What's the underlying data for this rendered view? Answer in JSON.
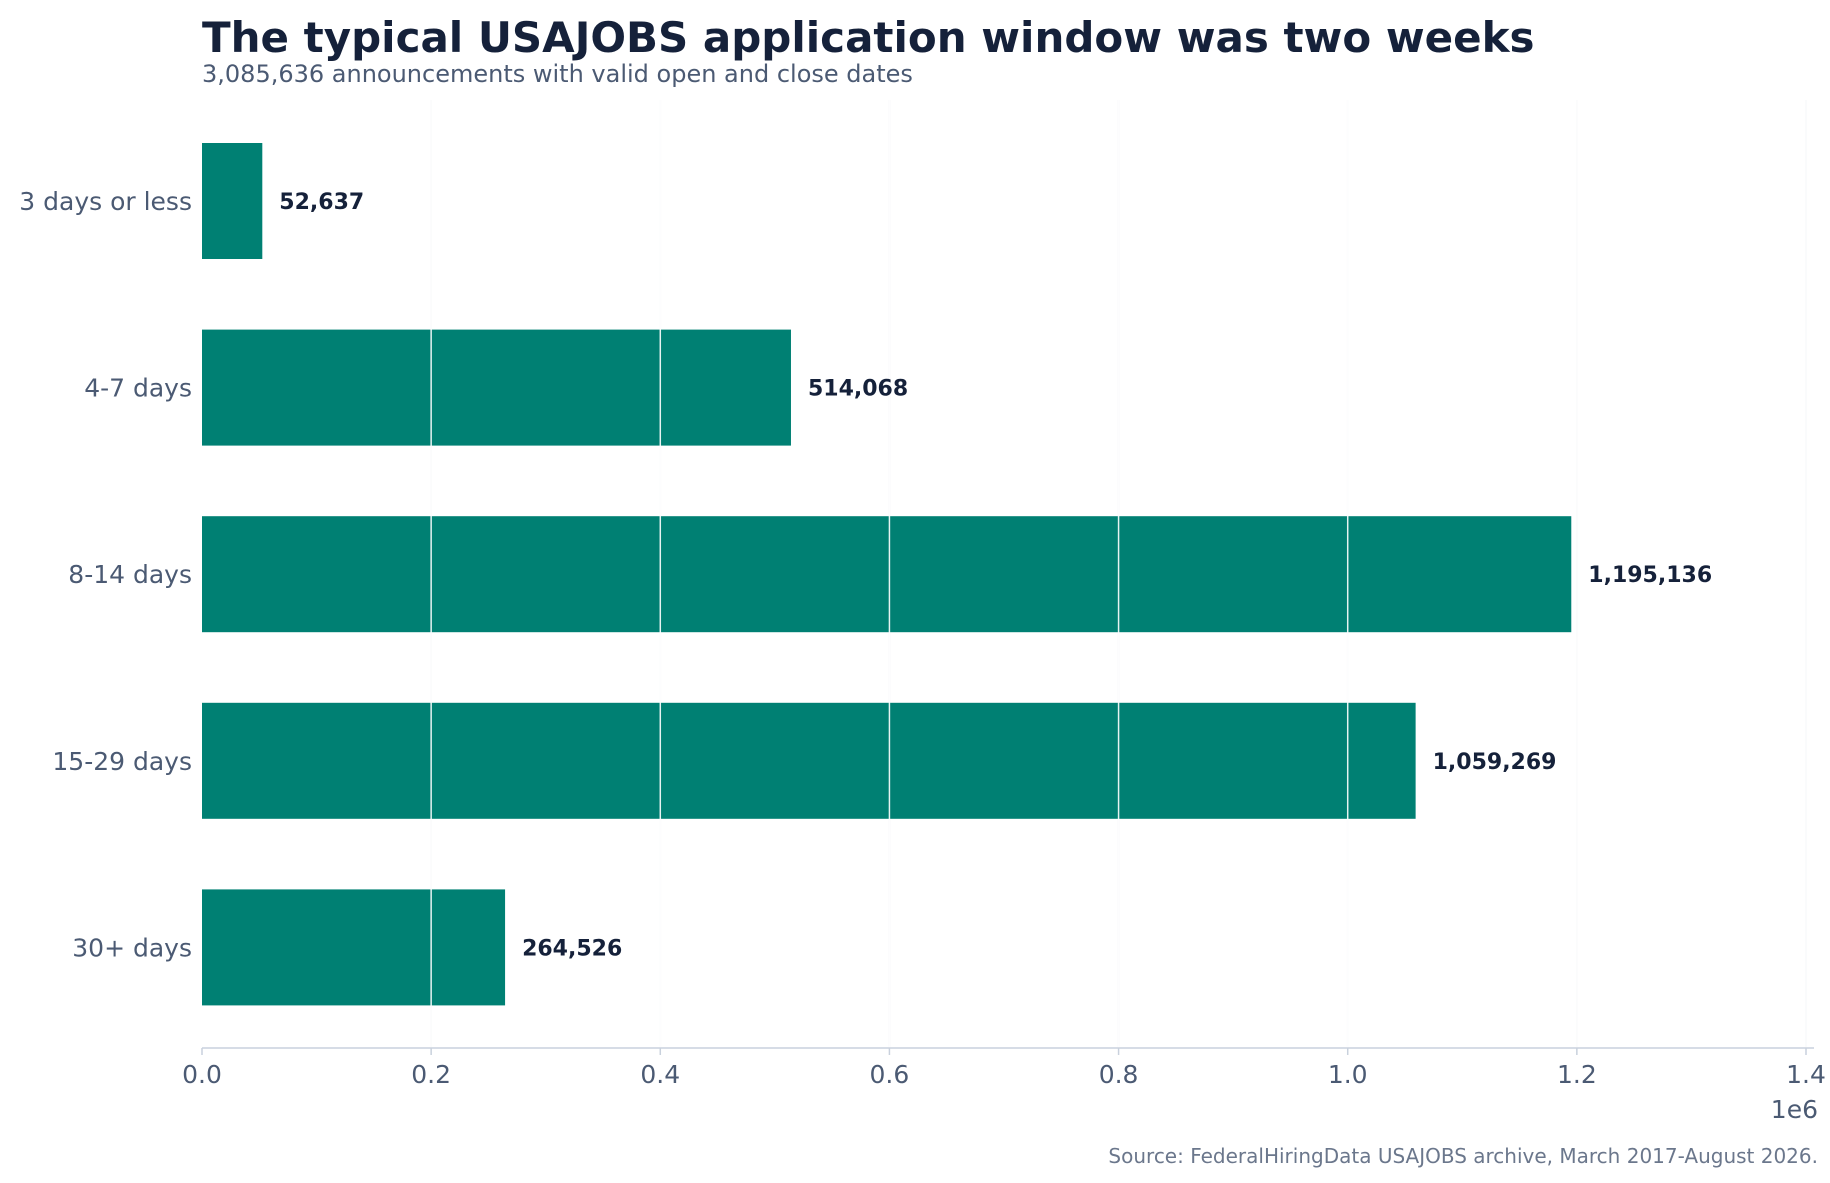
{
  "title": "The typical USAJOBS application window was two weeks",
  "subtitle": "3,085,636 announcements with valid open and close dates",
  "source": "Source: FederalHiringData USAJOBS archive, March 2017-August 2026.",
  "colors": {
    "bar": "#008073",
    "grid": "#e6e9ef",
    "axis": "#c9d1dd",
    "text_dark": "#15213a",
    "text_muted": "#4b5a73"
  },
  "chart_data": {
    "type": "bar",
    "orientation": "horizontal",
    "title": "The typical USAJOBS application window was two weeks",
    "subtitle": "3,085,636 announcements with valid open and close dates",
    "categories": [
      "3 days or less",
      "4-7 days",
      "8-14 days",
      "15-29 days",
      "30+ days"
    ],
    "values": [
      52637,
      514068,
      1195136,
      1059269,
      264526
    ],
    "value_labels": [
      "52,637",
      "514,068",
      "1,195,136",
      "1,059,269",
      "264,526"
    ],
    "xlim": [
      0,
      1400000
    ],
    "x_ticks": [
      0,
      200000,
      400000,
      600000,
      800000,
      1000000,
      1200000,
      1400000
    ],
    "x_tick_labels": [
      "0.0",
      "0.2",
      "0.4",
      "0.6",
      "0.8",
      "1.0",
      "1.2",
      "1.4"
    ],
    "x_offset_label": "1e6",
    "grid": "vertical",
    "legend": "none"
  }
}
